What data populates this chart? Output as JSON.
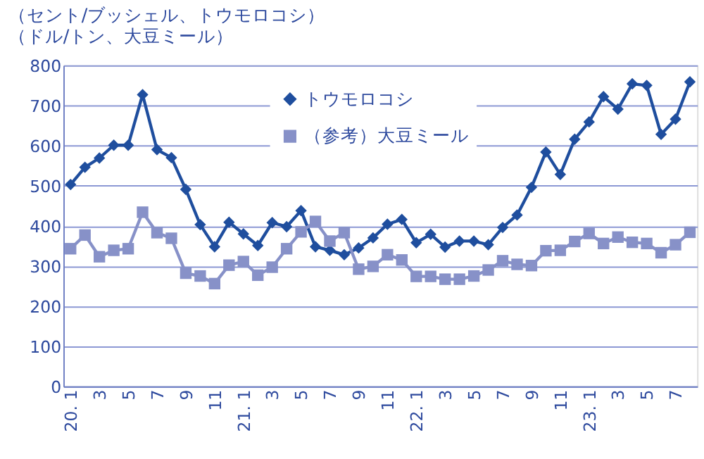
{
  "chart_data": {
    "type": "line",
    "ylabel": "（セント/ブッシェル、トウモロコシ）",
    "annotations": [
      "（ドル/トン、大豆ミール）"
    ],
    "categories": [
      "20. 1",
      null,
      "3",
      null,
      "5",
      null,
      "7",
      null,
      "9",
      null,
      "11",
      null,
      "21. 1",
      null,
      "3",
      null,
      "5",
      null,
      "7",
      null,
      "9",
      null,
      "11",
      null,
      "22. 1",
      null,
      "3",
      null,
      "5",
      null,
      "7",
      null,
      "9",
      null,
      "11",
      null,
      "23. 1",
      null,
      "3",
      null,
      "5",
      null,
      "7",
      null
    ],
    "series": [
      {
        "name": "トウモロコシ",
        "color": "#1f4e9e",
        "marker": "diamond",
        "values": [
          503,
          546,
          569,
          601,
          601,
          727,
          590,
          570,
          491,
          403,
          348,
          409,
          380,
          351,
          408,
          398,
          438,
          348,
          339,
          328,
          345,
          370,
          404,
          416,
          358,
          379,
          347,
          362,
          362,
          353,
          396,
          427,
          496,
          584,
          528,
          616,
          659,
          722,
          691,
          754,
          750,
          628,
          666,
          759
        ]
      },
      {
        "name": "（参考）大豆ミール",
        "color": "#8791c8",
        "marker": "square",
        "values": [
          343,
          377,
          323,
          339,
          343,
          434,
          383,
          369,
          282,
          275,
          256,
          302,
          311,
          277,
          297,
          343,
          385,
          411,
          362,
          383,
          292,
          299,
          328,
          315,
          274,
          274,
          267,
          267,
          275,
          290,
          313,
          304,
          301,
          338,
          339,
          361,
          381,
          356,
          372,
          359,
          356,
          333,
          353,
          384
        ]
      }
    ],
    "ylim": [
      0,
      800
    ],
    "yticks": [
      0,
      100,
      200,
      300,
      400,
      500,
      600,
      700,
      800
    ],
    "grid": "y",
    "legend": "top"
  }
}
